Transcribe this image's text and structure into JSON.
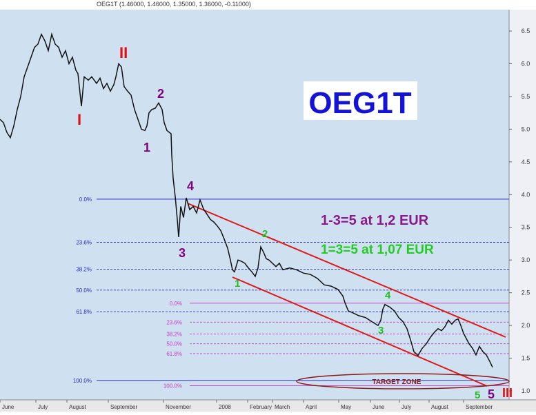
{
  "header": {
    "text": "OEG1T (1.46000, 1.46000, 1.35000, 1.36000, -0.11000)"
  },
  "chart_data": {
    "type": "line",
    "title": "OEG1T",
    "ohlc_header": "OEG1T (1.46000, 1.46000, 1.35000, 1.36000, -0.11000)",
    "y_ticks": [
      "6.5",
      "6.0",
      "5.5",
      "5.0",
      "4.5",
      "4.0",
      "3.5",
      "3.0",
      "2.5",
      "2.0",
      "1.5",
      "1.0"
    ],
    "ylim": [
      1.0,
      6.5
    ],
    "x_ticks": [
      "June",
      "July",
      "August",
      "September",
      "November",
      "2008",
      "February",
      "March",
      "April",
      "May",
      "June",
      "July",
      "August",
      "September"
    ],
    "fib_primary": [
      {
        "label": "0.0%",
        "value": 3.93
      },
      {
        "label": "23.6%",
        "value": 3.27
      },
      {
        "label": "38.2%",
        "value": 2.86
      },
      {
        "label": "50.0%",
        "value": 2.54
      },
      {
        "label": "61.8%",
        "value": 2.21
      },
      {
        "label": "100.0%",
        "value": 1.16
      }
    ],
    "fib_secondary": [
      {
        "label": "0.0%",
        "value": 2.34
      },
      {
        "label": "23.6%",
        "value": 2.05
      },
      {
        "label": "38.2%",
        "value": 1.87
      },
      {
        "label": "50.0%",
        "value": 1.72
      },
      {
        "label": "61.8%",
        "value": 1.57
      },
      {
        "label": "100.0%",
        "value": 1.08
      }
    ],
    "annotations": {
      "text1": "1-3=5 at 1,2 EUR",
      "text2": "1=3=5 at 1,07 EUR",
      "target": "TARGET ZONE"
    },
    "wave_labels": [
      {
        "text": "I",
        "color": "#e01010"
      },
      {
        "text": "II",
        "color": "#e01010"
      },
      {
        "text": "1",
        "color": "#800080"
      },
      {
        "text": "2",
        "color": "#800080"
      },
      {
        "text": "3",
        "color": "#800080"
      },
      {
        "text": "4",
        "color": "#800080"
      },
      {
        "text": "1",
        "color": "#20c020"
      },
      {
        "text": "2",
        "color": "#20c020"
      },
      {
        "text": "3",
        "color": "#20c020"
      },
      {
        "text": "4",
        "color": "#20c020"
      },
      {
        "text": "5",
        "color": "#20c020"
      },
      {
        "text": "5",
        "color": "#800080"
      },
      {
        "text": "III",
        "color": "#e01010"
      }
    ],
    "price_series": [
      [
        0,
        5.15
      ],
      [
        5,
        5.1
      ],
      [
        10,
        4.95
      ],
      [
        15,
        4.87
      ],
      [
        20,
        5.05
      ],
      [
        25,
        5.3
      ],
      [
        30,
        5.5
      ],
      [
        35,
        5.8
      ],
      [
        40,
        5.95
      ],
      [
        45,
        6.1
      ],
      [
        50,
        6.25
      ],
      [
        55,
        6.3
      ],
      [
        60,
        6.45
      ],
      [
        65,
        6.35
      ],
      [
        70,
        6.2
      ],
      [
        75,
        6.45
      ],
      [
        80,
        6.3
      ],
      [
        85,
        6.25
      ],
      [
        90,
        6.1
      ],
      [
        95,
        6.2
      ],
      [
        100,
        6.0
      ],
      [
        105,
        6.1
      ],
      [
        110,
        5.9
      ],
      [
        113,
        5.85
      ],
      [
        115,
        5.65
      ],
      [
        118,
        5.35
      ],
      [
        122,
        5.8
      ],
      [
        128,
        5.75
      ],
      [
        133,
        5.8
      ],
      [
        140,
        5.7
      ],
      [
        145,
        5.78
      ],
      [
        150,
        5.62
      ],
      [
        155,
        5.7
      ],
      [
        160,
        5.58
      ],
      [
        165,
        5.68
      ],
      [
        168,
        5.8
      ],
      [
        172,
        6.0
      ],
      [
        176,
        5.95
      ],
      [
        180,
        5.65
      ],
      [
        185,
        5.58
      ],
      [
        190,
        5.52
      ],
      [
        195,
        5.3
      ],
      [
        200,
        5.15
      ],
      [
        205,
        5.0
      ],
      [
        210,
        4.98
      ],
      [
        213,
        5.05
      ],
      [
        216,
        5.25
      ],
      [
        220,
        5.3
      ],
      [
        225,
        5.32
      ],
      [
        230,
        5.4
      ],
      [
        235,
        5.3
      ],
      [
        238,
        5.1
      ],
      [
        242,
        4.98
      ],
      [
        248,
        4.93
      ],
      [
        249,
        4.6
      ],
      [
        251,
        4.25
      ],
      [
        254,
        3.97
      ],
      [
        257,
        3.62
      ],
      [
        259,
        3.35
      ],
      [
        262,
        3.82
      ],
      [
        266,
        3.65
      ],
      [
        270,
        3.95
      ],
      [
        275,
        3.77
      ],
      [
        280,
        3.82
      ],
      [
        285,
        3.72
      ],
      [
        290,
        3.92
      ],
      [
        295,
        3.78
      ],
      [
        300,
        3.7
      ],
      [
        305,
        3.62
      ],
      [
        310,
        3.58
      ],
      [
        315,
        3.52
      ],
      [
        320,
        3.45
      ],
      [
        325,
        3.32
      ],
      [
        330,
        3.18
      ],
      [
        334,
        3.0
      ],
      [
        337,
        2.85
      ],
      [
        340,
        2.82
      ],
      [
        345,
        3.0
      ],
      [
        350,
        2.98
      ],
      [
        355,
        2.95
      ],
      [
        360,
        2.88
      ],
      [
        365,
        2.82
      ],
      [
        370,
        2.75
      ],
      [
        374,
        2.88
      ],
      [
        378,
        3.2
      ],
      [
        382,
        3.12
      ],
      [
        386,
        3.02
      ],
      [
        390,
        3.0
      ],
      [
        395,
        2.95
      ],
      [
        400,
        2.9
      ],
      [
        405,
        2.95
      ],
      [
        410,
        2.85
      ],
      [
        420,
        2.88
      ],
      [
        430,
        2.85
      ],
      [
        440,
        2.8
      ],
      [
        450,
        2.78
      ],
      [
        460,
        2.72
      ],
      [
        470,
        2.62
      ],
      [
        480,
        2.6
      ],
      [
        490,
        2.55
      ],
      [
        497,
        2.45
      ],
      [
        500,
        2.35
      ],
      [
        505,
        2.22
      ],
      [
        510,
        2.2
      ],
      [
        520,
        2.15
      ],
      [
        530,
        2.12
      ],
      [
        540,
        2.05
      ],
      [
        548,
        2.0
      ],
      [
        552,
        2.08
      ],
      [
        555,
        2.25
      ],
      [
        558,
        2.32
      ],
      [
        565,
        2.28
      ],
      [
        572,
        2.22
      ],
      [
        578,
        2.12
      ],
      [
        584,
        2.06
      ],
      [
        590,
        1.95
      ],
      [
        596,
        1.75
      ],
      [
        600,
        1.6
      ],
      [
        606,
        1.54
      ],
      [
        612,
        1.65
      ],
      [
        618,
        1.72
      ],
      [
        624,
        1.82
      ],
      [
        630,
        1.9
      ],
      [
        635,
        1.95
      ],
      [
        640,
        1.92
      ],
      [
        645,
        1.98
      ],
      [
        650,
        2.08
      ],
      [
        655,
        2.02
      ],
      [
        660,
        2.08
      ],
      [
        664,
        2.1
      ],
      [
        668,
        2.0
      ],
      [
        672,
        1.88
      ],
      [
        676,
        1.8
      ],
      [
        680,
        1.72
      ],
      [
        685,
        1.65
      ],
      [
        690,
        1.55
      ],
      [
        695,
        1.68
      ],
      [
        700,
        1.6
      ],
      [
        705,
        1.55
      ],
      [
        710,
        1.45
      ],
      [
        714,
        1.36
      ]
    ],
    "price_axis_x": "position index (no units)"
  },
  "icons": {
    "legend_circle": "target-zone-ellipse"
  }
}
